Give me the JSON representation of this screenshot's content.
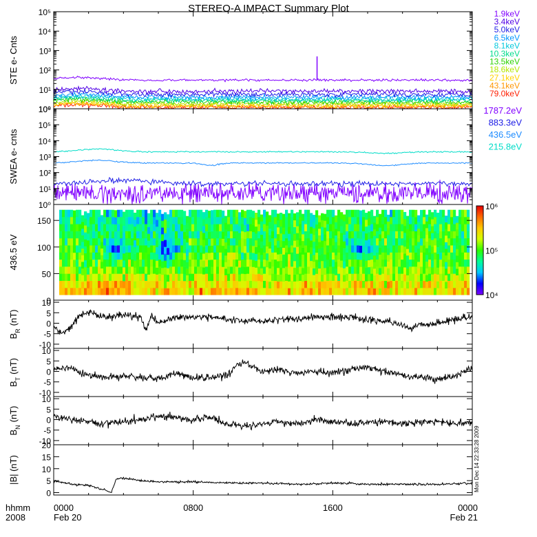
{
  "title": "STEREO-A IMPACT Summary Plot",
  "side_stamp": "Mon Dec 14 22:33:28 2009",
  "colors": {
    "line": "#000000",
    "ste_spike": "#8000ff",
    "spectrogram_scale": [
      "#7d00ff",
      "#0000ff",
      "#00c8ff",
      "#00ff96",
      "#2dff00",
      "#d2ff00",
      "#ffc800",
      "#ff6a00",
      "#e60000"
    ]
  },
  "x_axis": {
    "tick_labels": [
      "0000",
      "0800",
      "1600",
      "0000"
    ],
    "tick_hours": [
      0,
      8,
      16,
      24
    ],
    "date_labels": [
      "Feb 20",
      "",
      "",
      "Feb 21"
    ],
    "left_label_1": "hhmm",
    "left_label_2": "2008",
    "xlim_hours": [
      0,
      24
    ]
  },
  "chart_data": [
    {
      "type": "line",
      "panel": "ste",
      "ylabel": "STE e- Cnts",
      "y_scale": "log",
      "ylim": [
        1,
        100000
      ],
      "y_tick_labels": [
        "10⁰",
        "10¹",
        "10²",
        "10³",
        "10⁴",
        "10⁵"
      ],
      "legend_placement": "right",
      "series": [
        {
          "name": "1.9keV",
          "color": "#8000ff",
          "typical_value": 30
        },
        {
          "name": "3.4keV",
          "color": "#5000e6",
          "typical_value": 8
        },
        {
          "name": "5.0keV",
          "color": "#1e1ee6",
          "typical_value": 5.5
        },
        {
          "name": "6.5keV",
          "color": "#0096ff",
          "typical_value": 4
        },
        {
          "name": "8.1keV",
          "color": "#00c8dc",
          "typical_value": 3.2
        },
        {
          "name": "10.3keV",
          "color": "#00dc8c",
          "typical_value": 2.7
        },
        {
          "name": "13.5keV",
          "color": "#2dd200",
          "typical_value": 2.2
        },
        {
          "name": "18.6keV",
          "color": "#b4e600",
          "typical_value": 1.8
        },
        {
          "name": "27.1keV",
          "color": "#ffd200",
          "typical_value": 1.5
        },
        {
          "name": "43.1keV",
          "color": "#ff9600",
          "typical_value": 1.3
        },
        {
          "name": "79.0keV",
          "color": "#ff1e00",
          "typical_value": 1.15
        }
      ],
      "annotations": [
        {
          "x_hour": 15.1,
          "y": 500,
          "note": "spike"
        }
      ]
    },
    {
      "type": "line",
      "panel": "swea",
      "ylabel": "SWEA e- cnts",
      "y_scale": "log",
      "ylim": [
        1,
        1000000
      ],
      "y_tick_labels": [
        "10⁰",
        "10¹",
        "10²",
        "10³",
        "10⁴",
        "10⁵",
        "10⁶"
      ],
      "legend_placement": "right",
      "series": [
        {
          "name": "1787.2eV",
          "color": "#8000ff",
          "typical_value": 5
        },
        {
          "name": "883.3eV",
          "color": "#1e1ee6",
          "typical_value": 20
        },
        {
          "name": "436.5eV",
          "color": "#1e8cff",
          "typical_value": 400
        },
        {
          "name": "215.8eV",
          "color": "#00dcc8",
          "typical_value": 2000
        }
      ]
    },
    {
      "type": "heatmap",
      "panel": "pad",
      "ylabel": "436.5 eV",
      "ylim": [
        0,
        180
      ],
      "y_ticks": [
        0,
        50,
        100,
        150
      ],
      "colorbar": {
        "scale": "log",
        "range": [
          10000,
          1000000
        ],
        "tick_labels": [
          "10⁴",
          "10⁵",
          "10⁶"
        ]
      }
    },
    {
      "type": "line",
      "panel": "br",
      "ylabel": "BR (nT)",
      "ylabel_main": "B",
      "ylabel_sub": "R",
      "ylabel_unit": "(nT)",
      "ylim": [
        -12,
        11
      ],
      "y_ticks": [
        -10,
        -5,
        0,
        5,
        10
      ],
      "x_hours": [
        0,
        0.5,
        1,
        1.5,
        2,
        3,
        4,
        5,
        5.3,
        5.6,
        6,
        7,
        8,
        9,
        10,
        11,
        12,
        13,
        14,
        15,
        16,
        17,
        18,
        19,
        20,
        20.5,
        21,
        22,
        23,
        24
      ],
      "values": [
        -2,
        -5,
        -2,
        4,
        5,
        3,
        4,
        3,
        -3,
        3,
        0,
        3,
        3,
        3,
        2,
        1,
        1,
        2,
        2,
        3,
        3,
        3,
        2,
        1,
        -1,
        -3,
        -1,
        0,
        2,
        3
      ]
    },
    {
      "type": "line",
      "panel": "bt",
      "ylabel": "BT (nT)",
      "ylabel_main": "B",
      "ylabel_sub": "T",
      "ylabel_unit": "(nT)",
      "ylim": [
        -12,
        11
      ],
      "y_ticks": [
        -10,
        -5,
        0,
        5,
        10
      ],
      "x_hours": [
        0,
        1,
        1.5,
        2,
        3,
        4,
        5,
        6,
        7,
        8,
        9,
        10,
        10.5,
        11,
        12,
        13,
        14,
        15,
        16,
        17,
        18,
        19,
        20,
        21,
        22,
        23,
        24
      ],
      "values": [
        1,
        2,
        -1,
        -2,
        -3,
        -2,
        -3,
        -3,
        -1,
        -3,
        -3,
        -2,
        3,
        4,
        0,
        1,
        -1,
        0,
        -1,
        1,
        2,
        0,
        -2,
        -3,
        -4,
        -2,
        1
      ]
    },
    {
      "type": "line",
      "panel": "bn",
      "ylabel": "BN (nT)",
      "ylabel_main": "B",
      "ylabel_sub": "N",
      "ylabel_unit": "(nT)",
      "ylim": [
        -12,
        11
      ],
      "y_ticks": [
        -10,
        -5,
        0,
        5,
        10
      ],
      "x_hours": [
        0,
        1,
        2,
        3,
        4,
        5,
        6,
        7,
        8,
        9,
        10,
        11,
        12,
        13,
        14,
        15,
        16,
        17,
        18,
        19,
        20,
        21,
        22,
        23,
        24
      ],
      "values": [
        2,
        0,
        -1,
        -2,
        -1,
        0,
        2,
        1,
        0,
        1,
        -2,
        -3,
        -2,
        -1,
        -2,
        0,
        -1,
        -2,
        -1,
        -1,
        -2,
        -1,
        -1,
        -2,
        -1
      ]
    },
    {
      "type": "line",
      "panel": "bmag",
      "ylabel": "|B| (nT)",
      "ylabel_unit": "(nT)",
      "ylim": [
        -1,
        20
      ],
      "y_ticks": [
        0,
        5,
        10,
        15,
        20
      ],
      "x_hours": [
        0,
        1,
        2,
        3,
        3.3,
        3.6,
        4,
        5,
        6,
        8,
        10,
        12,
        14,
        16,
        18,
        20,
        22,
        24
      ],
      "values": [
        5,
        3.5,
        3,
        1,
        0,
        6,
        6,
        5,
        4.5,
        4.5,
        4,
        4,
        3.5,
        4,
        3.5,
        3.5,
        3.5,
        4
      ]
    }
  ]
}
